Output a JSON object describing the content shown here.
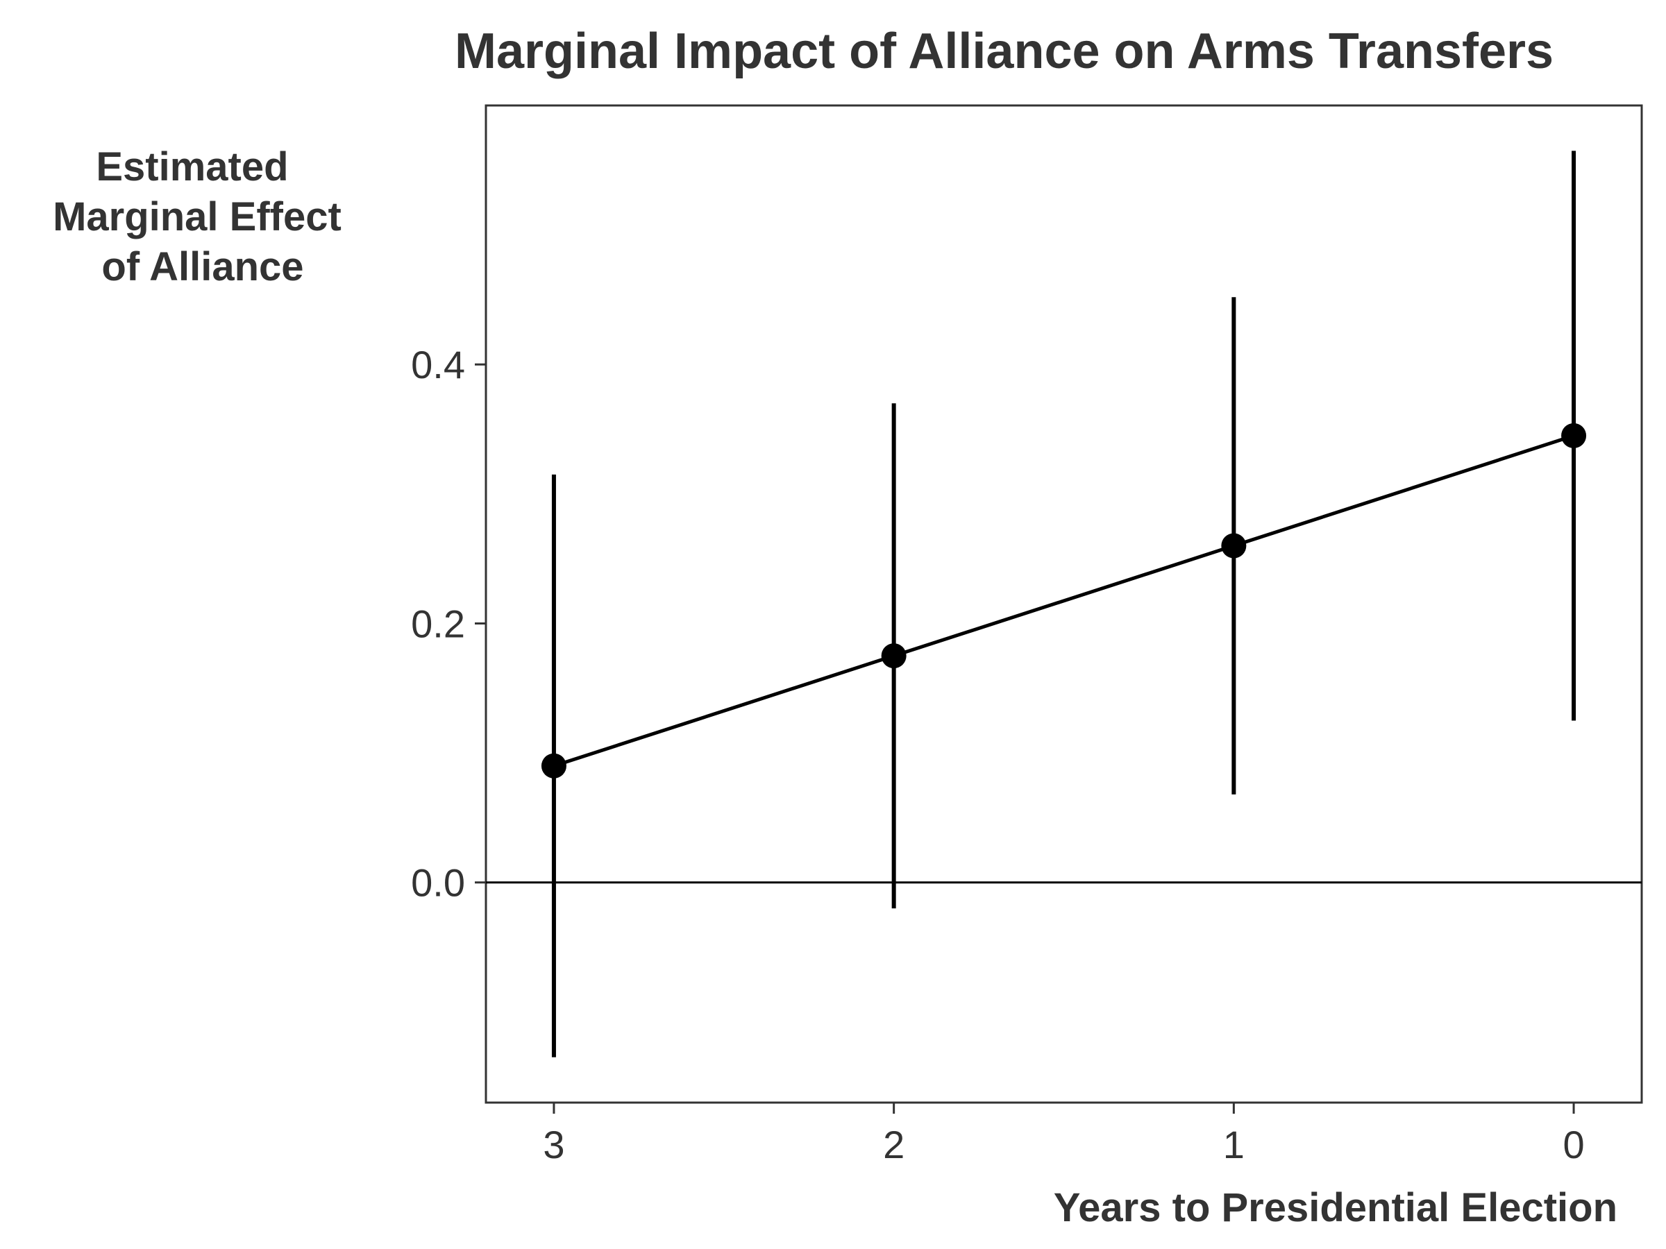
{
  "chart_data": {
    "type": "line",
    "title": "Marginal Impact of Alliance on Arms Transfers",
    "xlabel": "Years to Presidential Election",
    "ylabel_lines": [
      "Estimated",
      "Marginal Effect",
      "of Alliance"
    ],
    "x": [
      3,
      2,
      1,
      0
    ],
    "x_reversed": true,
    "xlim": [
      3.2,
      -0.2
    ],
    "ylim": [
      -0.17,
      0.6
    ],
    "x_ticks": [
      "3",
      "2",
      "1",
      "0"
    ],
    "y_ticks": [
      "0.0",
      "0.2",
      "0.4"
    ],
    "y_tick_values": [
      0.0,
      0.2,
      0.4
    ],
    "reference_line_y": 0.0,
    "grid": false,
    "series": [
      {
        "values": [
          0.09,
          0.175,
          0.26,
          0.345
        ],
        "lower": [
          -0.135,
          -0.02,
          0.068,
          0.125
        ],
        "upper": [
          0.315,
          0.37,
          0.452,
          0.565
        ]
      }
    ],
    "colors": {
      "marks": "#000000",
      "text": "#333333",
      "frame": "#333333"
    }
  }
}
